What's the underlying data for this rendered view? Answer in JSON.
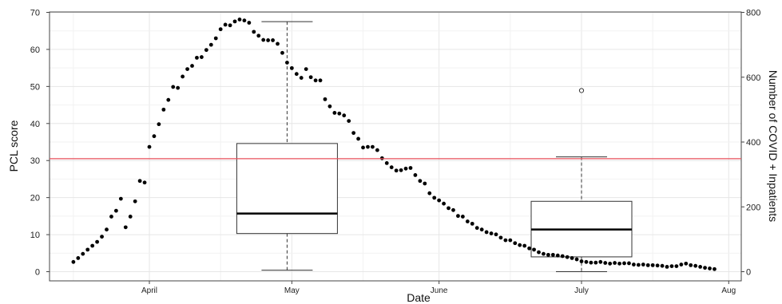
{
  "chart_data": {
    "type": "scatter",
    "title": "",
    "xlabel": "Date",
    "ylabel_left": "PCL score",
    "ylabel_right": "Number of COVID + Inpatients",
    "x_ticks": [
      "April",
      "May",
      "June",
      "July",
      "Aug"
    ],
    "ylim_left": [
      0,
      70
    ],
    "yticks_left": [
      "0",
      "10",
      "20",
      "30",
      "40",
      "50",
      "60",
      "70"
    ],
    "ylim_right": [
      0,
      800
    ],
    "yticks_right": [
      "0",
      "200",
      "400",
      "600",
      "800"
    ],
    "grid": true,
    "threshold_line": {
      "value": 30.5,
      "axis": "left",
      "color": "#e8505b"
    },
    "boxplots": [
      {
        "date": "2020-04-30",
        "whisker_low": 0.4,
        "q1": 10.3,
        "median": 15.7,
        "q3": 34.6,
        "whisker_high": 67.5,
        "outliers": []
      },
      {
        "date": "2020-07-01",
        "whisker_low": 0.0,
        "q1": 4.0,
        "median": 11.4,
        "q3": 19.0,
        "whisker_high": 31.0,
        "outliers": [
          48.9
        ]
      }
    ],
    "inpatients_series": {
      "axis": "right",
      "points": [
        [
          "2020-03-16",
          30
        ],
        [
          "2020-03-17",
          42
        ],
        [
          "2020-03-18",
          55
        ],
        [
          "2020-03-19",
          68
        ],
        [
          "2020-03-20",
          80
        ],
        [
          "2020-03-21",
          92
        ],
        [
          "2020-03-22",
          108
        ],
        [
          "2020-03-23",
          130
        ],
        [
          "2020-03-24",
          170
        ],
        [
          "2020-03-25",
          188
        ],
        [
          "2020-03-26",
          225
        ],
        [
          "2020-03-27",
          137
        ],
        [
          "2020-03-28",
          170
        ],
        [
          "2020-03-29",
          217
        ],
        [
          "2020-03-30",
          280
        ],
        [
          "2020-03-31",
          275
        ],
        [
          "2020-04-01",
          385
        ],
        [
          "2020-04-02",
          418
        ],
        [
          "2020-04-03",
          455
        ],
        [
          "2020-04-04",
          500
        ],
        [
          "2020-04-05",
          530
        ],
        [
          "2020-04-06",
          570
        ],
        [
          "2020-04-07",
          567
        ],
        [
          "2020-04-08",
          602
        ],
        [
          "2020-04-09",
          625
        ],
        [
          "2020-04-10",
          635
        ],
        [
          "2020-04-11",
          660
        ],
        [
          "2020-04-12",
          662
        ],
        [
          "2020-04-13",
          684
        ],
        [
          "2020-04-14",
          700
        ],
        [
          "2020-04-15",
          720
        ],
        [
          "2020-04-16",
          748
        ],
        [
          "2020-04-17",
          762
        ],
        [
          "2020-04-18",
          760
        ],
        [
          "2020-04-19",
          772
        ],
        [
          "2020-04-20",
          778
        ],
        [
          "2020-04-21",
          775
        ],
        [
          "2020-04-22",
          768
        ],
        [
          "2020-04-23",
          740
        ],
        [
          "2020-04-24",
          728
        ],
        [
          "2020-04-25",
          715
        ],
        [
          "2020-04-26",
          714
        ],
        [
          "2020-04-27",
          714
        ],
        [
          "2020-04-28",
          703
        ],
        [
          "2020-04-29",
          675
        ],
        [
          "2020-04-30",
          645
        ],
        [
          "2020-05-01",
          628
        ],
        [
          "2020-05-02",
          610
        ],
        [
          "2020-05-03",
          598
        ],
        [
          "2020-05-04",
          625
        ],
        [
          "2020-05-05",
          600
        ],
        [
          "2020-05-06",
          590
        ],
        [
          "2020-05-07",
          590
        ],
        [
          "2020-05-08",
          532
        ],
        [
          "2020-05-09",
          510
        ],
        [
          "2020-05-10",
          490
        ],
        [
          "2020-05-11",
          488
        ],
        [
          "2020-05-12",
          482
        ],
        [
          "2020-05-13",
          465
        ],
        [
          "2020-05-14",
          428
        ],
        [
          "2020-05-15",
          410
        ],
        [
          "2020-05-16",
          383
        ],
        [
          "2020-05-17",
          385
        ],
        [
          "2020-05-18",
          385
        ],
        [
          "2020-05-19",
          375
        ],
        [
          "2020-05-20",
          350
        ],
        [
          "2020-05-21",
          335
        ],
        [
          "2020-05-22",
          322
        ],
        [
          "2020-05-23",
          312
        ],
        [
          "2020-05-24",
          313
        ],
        [
          "2020-05-25",
          318
        ],
        [
          "2020-05-26",
          320
        ],
        [
          "2020-05-27",
          298
        ],
        [
          "2020-05-28",
          280
        ],
        [
          "2020-05-29",
          272
        ],
        [
          "2020-05-30",
          242
        ],
        [
          "2020-05-31",
          228
        ],
        [
          "2020-06-01",
          220
        ],
        [
          "2020-06-02",
          210
        ],
        [
          "2020-06-03",
          196
        ],
        [
          "2020-06-04",
          190
        ],
        [
          "2020-06-05",
          172
        ],
        [
          "2020-06-06",
          170
        ],
        [
          "2020-06-07",
          155
        ],
        [
          "2020-06-08",
          148
        ],
        [
          "2020-06-09",
          135
        ],
        [
          "2020-06-10",
          130
        ],
        [
          "2020-06-11",
          122
        ],
        [
          "2020-06-12",
          118
        ],
        [
          "2020-06-13",
          115
        ],
        [
          "2020-06-14",
          105
        ],
        [
          "2020-06-15",
          97
        ],
        [
          "2020-06-16",
          97
        ],
        [
          "2020-06-17",
          88
        ],
        [
          "2020-06-18",
          82
        ],
        [
          "2020-06-19",
          80
        ],
        [
          "2020-06-20",
          72
        ],
        [
          "2020-06-21",
          68
        ],
        [
          "2020-06-22",
          60
        ],
        [
          "2020-06-23",
          55
        ],
        [
          "2020-06-24",
          52
        ],
        [
          "2020-06-25",
          52
        ],
        [
          "2020-06-26",
          50
        ],
        [
          "2020-06-27",
          48
        ],
        [
          "2020-06-28",
          45
        ],
        [
          "2020-06-29",
          42
        ],
        [
          "2020-06-30",
          38
        ],
        [
          "2020-07-01",
          32
        ],
        [
          "2020-07-02",
          30
        ],
        [
          "2020-07-03",
          28
        ],
        [
          "2020-07-04",
          28
        ],
        [
          "2020-07-05",
          30
        ],
        [
          "2020-07-06",
          27
        ],
        [
          "2020-07-07",
          25
        ],
        [
          "2020-07-08",
          27
        ],
        [
          "2020-07-09",
          25
        ],
        [
          "2020-07-10",
          26
        ],
        [
          "2020-07-11",
          26
        ],
        [
          "2020-07-12",
          22
        ],
        [
          "2020-07-13",
          21
        ],
        [
          "2020-07-14",
          22
        ],
        [
          "2020-07-15",
          20
        ],
        [
          "2020-07-16",
          20
        ],
        [
          "2020-07-17",
          19
        ],
        [
          "2020-07-18",
          18
        ],
        [
          "2020-07-19",
          15
        ],
        [
          "2020-07-20",
          17
        ],
        [
          "2020-07-21",
          17
        ],
        [
          "2020-07-22",
          22
        ],
        [
          "2020-07-23",
          25
        ],
        [
          "2020-07-24",
          20
        ],
        [
          "2020-07-25",
          18
        ],
        [
          "2020-07-26",
          15
        ],
        [
          "2020-07-27",
          12
        ],
        [
          "2020-07-28",
          10
        ],
        [
          "2020-07-29",
          8
        ]
      ]
    }
  }
}
